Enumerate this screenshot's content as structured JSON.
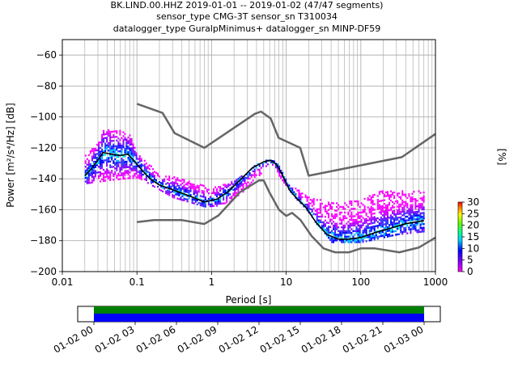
{
  "chart_data": {
    "type": "heatmap",
    "title_lines": [
      "BK.LIND.00.HHZ   2019-01-01 -- 2019-01-02  (47/47 segments)",
      "sensor_type CMG-3T sensor_sn T310034",
      "datalogger_type GuralpMinimus+ datalogger_sn MINP-DF59"
    ],
    "xlabel": "Period [s]",
    "ylabel": "Power [m²/s⁴/Hz] [dB]",
    "xscale": "log",
    "xlim": [
      0.01,
      1000
    ],
    "ylim": [
      -200,
      -50
    ],
    "xticks": [
      {
        "v": 0.01,
        "label": "0.01"
      },
      {
        "v": 0.1,
        "label": "0.1"
      },
      {
        "v": 1,
        "label": "1"
      },
      {
        "v": 10,
        "label": "10"
      },
      {
        "v": 100,
        "label": "100"
      },
      {
        "v": 1000,
        "label": "1000"
      }
    ],
    "yticks": [
      {
        "v": -60,
        "label": "−60"
      },
      {
        "v": -80,
        "label": "−80"
      },
      {
        "v": -100,
        "label": "−100"
      },
      {
        "v": -120,
        "label": "−120"
      },
      {
        "v": -140,
        "label": "−140"
      },
      {
        "v": -160,
        "label": "−160"
      },
      {
        "v": -180,
        "label": "−180"
      },
      {
        "v": -200,
        "label": "−200"
      }
    ],
    "grid": true,
    "colorbar": {
      "label": "[%]",
      "range": [
        0,
        30
      ],
      "ticks": [
        {
          "v": 0,
          "label": "0"
        },
        {
          "v": 5,
          "label": "5"
        },
        {
          "v": 10,
          "label": "10"
        },
        {
          "v": 15,
          "label": "15"
        },
        {
          "v": 20,
          "label": "20"
        },
        {
          "v": 25,
          "label": "25"
        },
        {
          "v": 30,
          "label": "30"
        }
      ]
    },
    "high_noise_model": [
      [
        0.1,
        -91.5
      ],
      [
        0.22,
        -97.4
      ],
      [
        0.32,
        -110.5
      ],
      [
        0.8,
        -120
      ],
      [
        3.8,
        -98
      ],
      [
        4.6,
        -96.5
      ],
      [
        6.2,
        -101
      ],
      [
        7.9,
        -113.5
      ],
      [
        15.4,
        -120
      ],
      [
        20,
        -138
      ],
      [
        354.8,
        -126
      ],
      [
        1000,
        -111
      ]
    ],
    "low_noise_model": [
      [
        0.1,
        -168
      ],
      [
        0.17,
        -166.7
      ],
      [
        0.4,
        -166.7
      ],
      [
        0.8,
        -169.2
      ],
      [
        1.24,
        -163.7
      ],
      [
        2.4,
        -148.6
      ],
      [
        4.3,
        -141.1
      ],
      [
        5,
        -141.1
      ],
      [
        6,
        -149
      ],
      [
        8,
        -160
      ],
      [
        10,
        -164
      ],
      [
        12,
        -162
      ],
      [
        15.6,
        -166.7
      ],
      [
        21.9,
        -177
      ],
      [
        31.6,
        -185
      ],
      [
        45,
        -187.5
      ],
      [
        70,
        -187.5
      ],
      [
        100,
        -185
      ],
      [
        154.5,
        -185
      ],
      [
        328.2,
        -187.5
      ],
      [
        600,
        -184.4
      ],
      [
        1000,
        -178
      ]
    ],
    "mode_curve": [
      [
        0.02,
        -138
      ],
      [
        0.025,
        -133
      ],
      [
        0.03,
        -128
      ],
      [
        0.035,
        -123
      ],
      [
        0.045,
        -124
      ],
      [
        0.06,
        -125
      ],
      [
        0.075,
        -124
      ],
      [
        0.09,
        -128
      ],
      [
        0.12,
        -135
      ],
      [
        0.15,
        -140
      ],
      [
        0.2,
        -144
      ],
      [
        0.3,
        -147
      ],
      [
        0.5,
        -151
      ],
      [
        0.8,
        -155
      ],
      [
        1.2,
        -153
      ],
      [
        1.7,
        -148
      ],
      [
        2.5,
        -140
      ],
      [
        3.5,
        -133
      ],
      [
        5,
        -129
      ],
      [
        6.2,
        -128
      ],
      [
        7.5,
        -131
      ],
      [
        9,
        -138
      ],
      [
        11,
        -147
      ],
      [
        14,
        -153
      ],
      [
        18,
        -158
      ],
      [
        25,
        -168
      ],
      [
        35,
        -176
      ],
      [
        50,
        -179
      ],
      [
        70,
        -179
      ],
      [
        100,
        -178
      ],
      [
        150,
        -175
      ],
      [
        250,
        -172
      ],
      [
        400,
        -169
      ],
      [
        700,
        -167
      ]
    ],
    "spread_bands": [
      {
        "name": "upper",
        "points": [
          [
            0.02,
            -125
          ],
          [
            0.03,
            -116
          ],
          [
            0.035,
            -108
          ],
          [
            0.06,
            -109
          ],
          [
            0.08,
            -112
          ],
          [
            0.1,
            -124
          ],
          [
            0.2,
            -137
          ],
          [
            0.5,
            -141
          ],
          [
            1,
            -146
          ],
          [
            2,
            -141
          ],
          [
            4,
            -132
          ],
          [
            6.3,
            -127
          ],
          [
            10,
            -142
          ],
          [
            20,
            -152
          ],
          [
            50,
            -156
          ],
          [
            100,
            -152
          ],
          [
            180,
            -148
          ]
        ]
      },
      {
        "name": "lower",
        "points": [
          [
            0.02,
            -143
          ],
          [
            0.04,
            -141
          ],
          [
            0.1,
            -139
          ],
          [
            0.3,
            -152
          ],
          [
            0.8,
            -158
          ],
          [
            1.5,
            -157
          ],
          [
            3,
            -146
          ],
          [
            6,
            -130
          ],
          [
            10,
            -145
          ],
          [
            20,
            -162
          ],
          [
            40,
            -181
          ],
          [
            100,
            -181
          ],
          [
            300,
            -176
          ],
          [
            700,
            -174
          ]
        ]
      }
    ],
    "time_axis": {
      "ticks": [
        "01-02 00",
        "01-02 03",
        "01-02 06",
        "01-02 09",
        "01-02 12",
        "01-02 15",
        "01-02 18",
        "01-02 21",
        "01-03 00"
      ],
      "coverage_colors": [
        "#008000",
        "#0000ff"
      ],
      "coverage": [
        0.0,
        1.0
      ]
    },
    "colors": {
      "noise_model": "#666666",
      "mode": "#000000",
      "grid": "#b0b0b0"
    }
  }
}
